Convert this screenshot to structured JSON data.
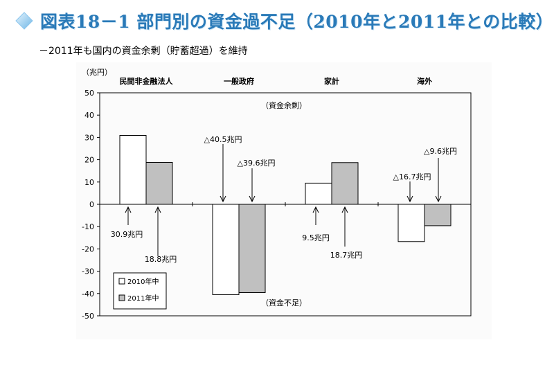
{
  "header": {
    "title": "図表18－1 部門別の資金過不足（2010年と2011年との比較）",
    "subtitle": "－2011年も国内の資金余剰（貯蓄超過）を維持",
    "accent_color": "#2a7ab8"
  },
  "chart_data": {
    "type": "bar",
    "unit_label": "（兆円）",
    "categories": [
      "民間非金融法人",
      "一般政府",
      "家計",
      "海外"
    ],
    "series": [
      {
        "name": "2010年中",
        "values": [
          30.9,
          -40.5,
          9.5,
          -16.7
        ],
        "color": "#ffffff"
      },
      {
        "name": "2011年中",
        "values": [
          18.8,
          -39.6,
          18.7,
          -9.6
        ],
        "color": "#c0c0c0"
      }
    ],
    "ylim": [
      -50,
      50
    ],
    "yticks": [
      50,
      40,
      30,
      20,
      10,
      0,
      -10,
      -20,
      -30,
      -40,
      -50
    ],
    "legend_position": "bottom-left",
    "grid": false,
    "annotations": {
      "surplus": "（資金余剰）",
      "deficit": "（資金不足）",
      "value_labels": [
        [
          "30.9兆円",
          "18.8兆円"
        ],
        [
          "△40.5兆円",
          "△39.6兆円"
        ],
        [
          "9.5兆円",
          "18.7兆円"
        ],
        [
          "△16.7兆円",
          "△9.6兆円"
        ]
      ]
    }
  }
}
